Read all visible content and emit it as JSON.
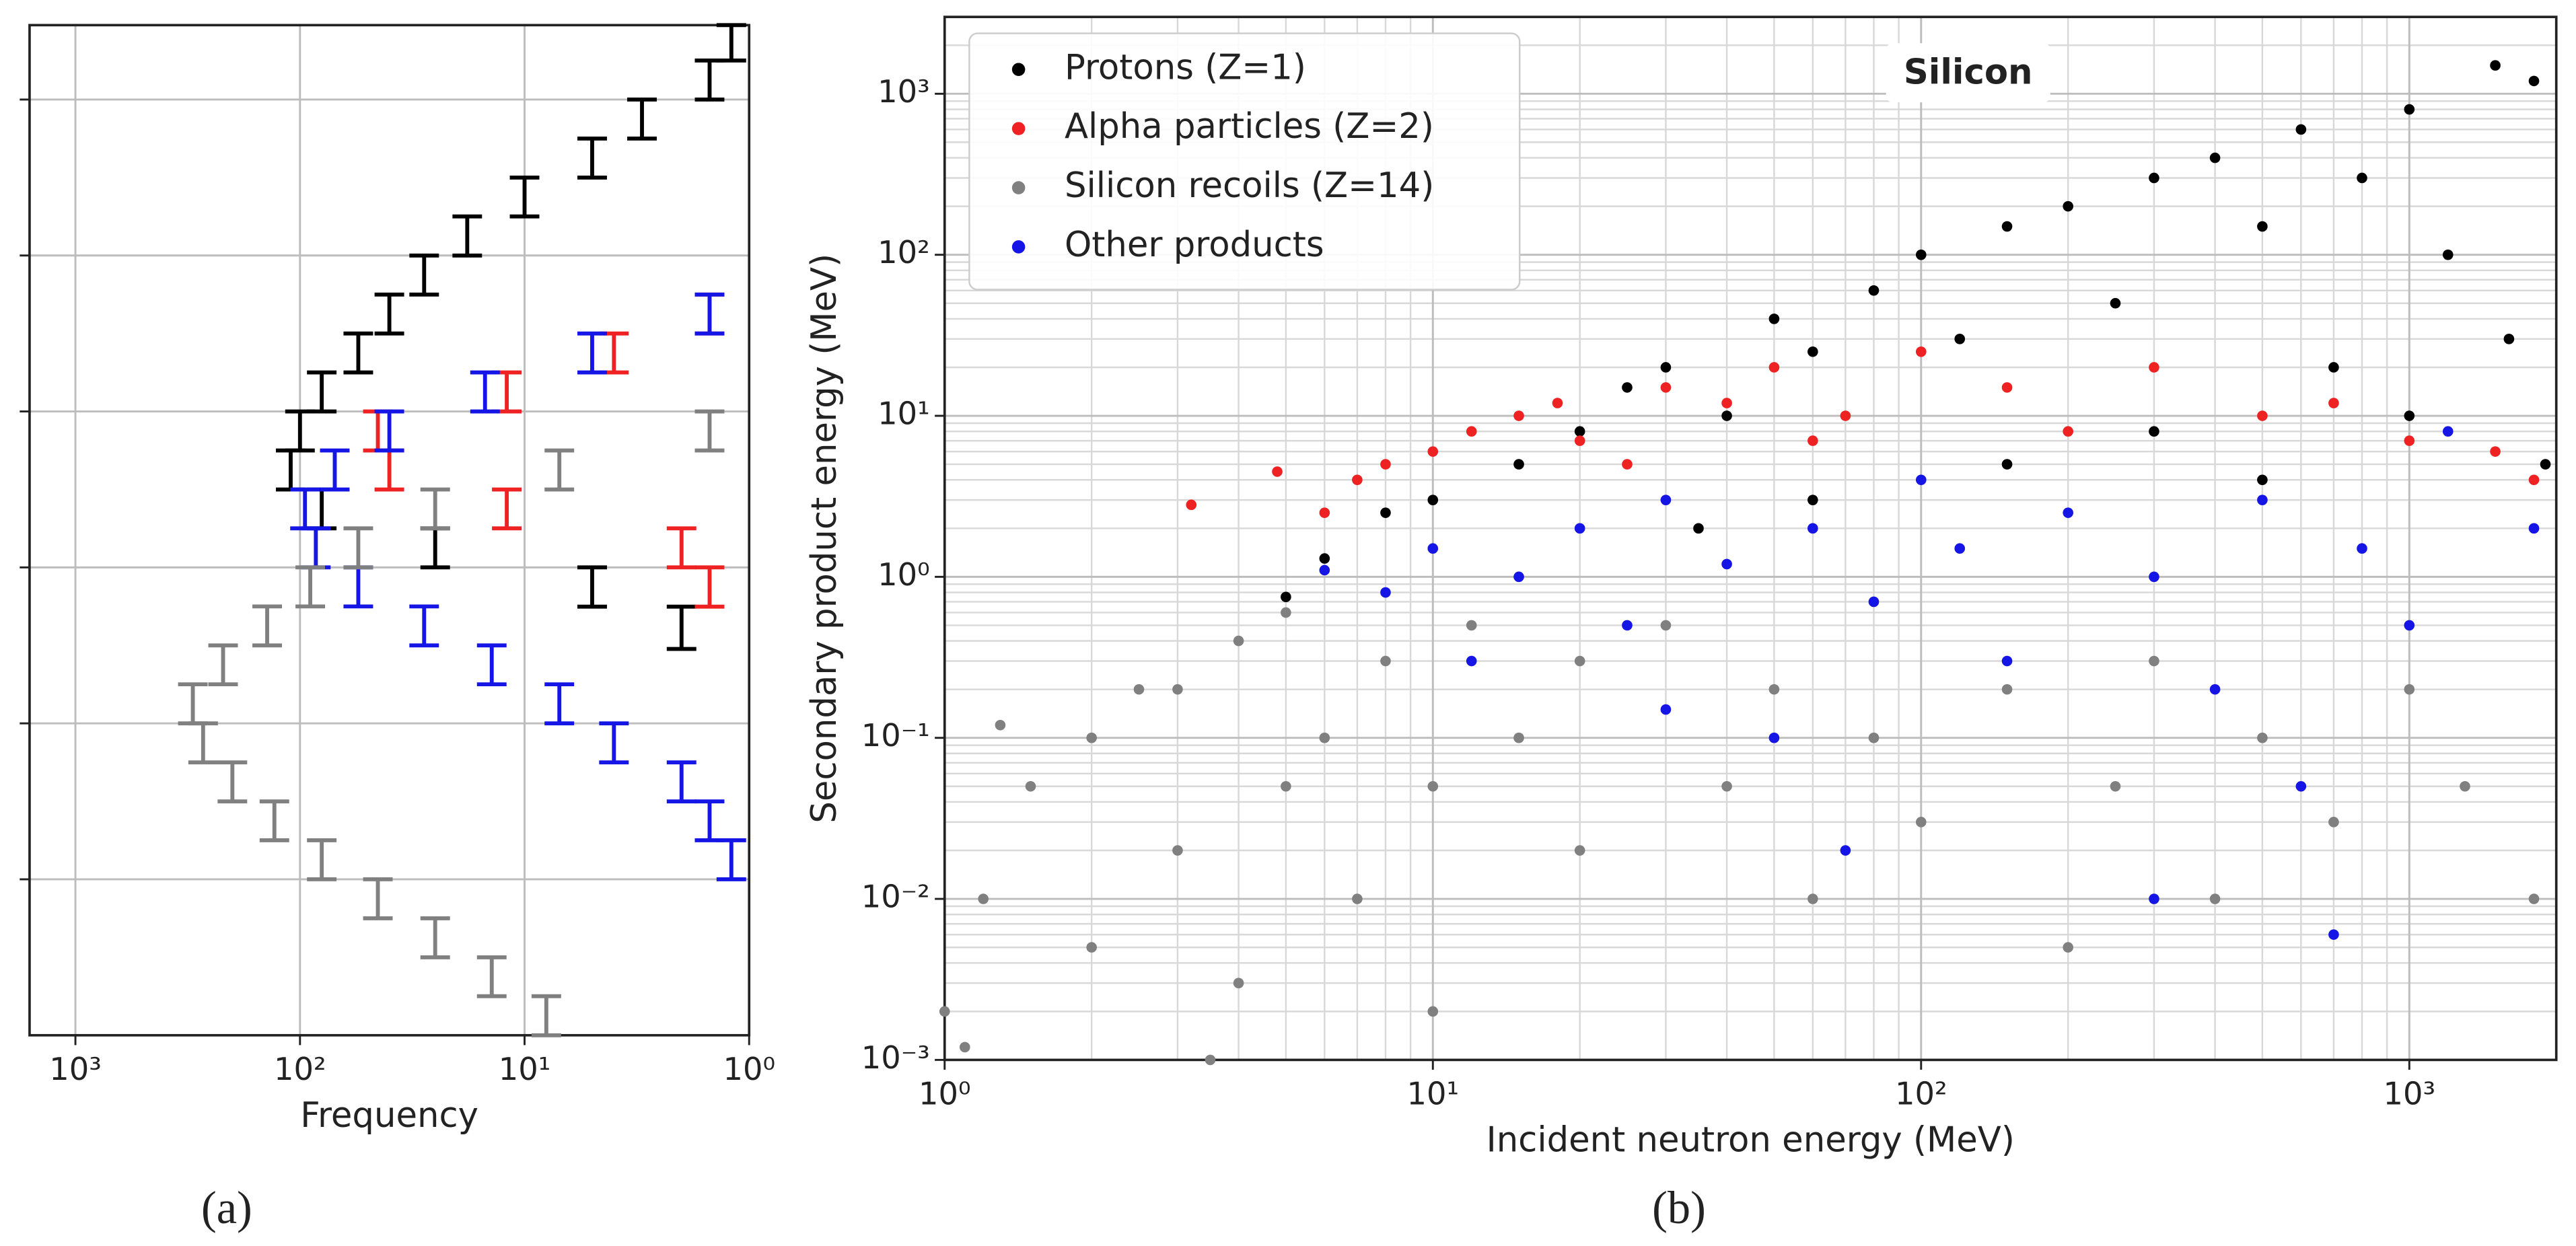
{
  "chart_data": [
    {
      "type": "histogram",
      "orientation": "horizontal",
      "panel_label": "(a)",
      "x_label": "Frequency",
      "xscale": "log",
      "yscale": "log",
      "grid": "major",
      "xlim": [
        1600,
        1
      ],
      "xticks": [
        {
          "value": 1000,
          "label": "10³"
        },
        {
          "value": 100,
          "label": "10²"
        },
        {
          "value": 10,
          "label": "10¹"
        },
        {
          "value": 1,
          "label": "10⁰"
        }
      ],
      "ylim": [
        0.001,
        3000
      ],
      "yticks": [
        0.01,
        0.1,
        1,
        10,
        100,
        1000
      ],
      "series": [
        {
          "color": "#000000",
          "bins": [
            0.3,
            0.56,
            1,
            1.78,
            3.16,
            5.62,
            10,
            17.8,
            31.6,
            56.2,
            100,
            178,
            316,
            562,
            1000,
            1780,
            3000
          ],
          "values": [
            2,
            5,
            25,
            80,
            110,
            100,
            80,
            55,
            40,
            28,
            18,
            10,
            5,
            3,
            1.5,
            1.2
          ]
        },
        {
          "color": "#ee2222",
          "bins": [
            0.56,
            1,
            1.78,
            3.16,
            5.62,
            10,
            17.8,
            31.6,
            56.2
          ],
          "values": [
            1.5,
            2,
            12,
            40,
            45,
            12,
            4,
            1.5
          ]
        },
        {
          "color": "#1515e6",
          "bins": [
            0.01,
            0.0178,
            0.0316,
            0.0562,
            0.1,
            0.178,
            0.316,
            0.562,
            1,
            1.78,
            3.16,
            5.62,
            10,
            17.8,
            31.6,
            56.2
          ],
          "values": [
            1.2,
            1.5,
            2,
            4,
            7,
            14,
            28,
            55,
            85,
            95,
            70,
            40,
            15,
            5,
            1.5
          ]
        },
        {
          "color": "#808080",
          "bins": [
            0.001,
            0.00178,
            0.00316,
            0.00562,
            0.01,
            0.0178,
            0.0316,
            0.0562,
            0.1,
            0.178,
            0.316,
            0.562,
            1,
            1.78,
            3.16,
            5.62,
            10
          ],
          "values": [
            8,
            14,
            25,
            45,
            80,
            130,
            200,
            270,
            300,
            220,
            140,
            90,
            55,
            25,
            7,
            1.5
          ]
        }
      ]
    },
    {
      "type": "scatter",
      "panel_label": "(b)",
      "title": "Silicon",
      "x_label": "Incident neutron energy (MeV)",
      "y_label": "Secondary product energy (MeV)",
      "xscale": "log",
      "yscale": "log",
      "grid": "both",
      "legend": "upper left",
      "xlim": [
        1,
        2000
      ],
      "xticks": [
        {
          "value": 1,
          "label": "10⁰"
        },
        {
          "value": 10,
          "label": "10¹"
        },
        {
          "value": 100,
          "label": "10²"
        },
        {
          "value": 1000,
          "label": "10³"
        }
      ],
      "ylim": [
        0.001,
        3000
      ],
      "yticks": [
        {
          "value": 0.001,
          "label": "10⁻³"
        },
        {
          "value": 0.01,
          "label": "10⁻²"
        },
        {
          "value": 0.1,
          "label": "10⁻¹"
        },
        {
          "value": 1,
          "label": "10⁰"
        },
        {
          "value": 10,
          "label": "10¹"
        },
        {
          "value": 100,
          "label": "10²"
        },
        {
          "value": 1000,
          "label": "10³"
        }
      ],
      "series": [
        {
          "name": "Protons (Z=1)",
          "color": "#000000",
          "x": [
            5,
            6,
            8,
            10,
            15,
            20,
            25,
            30,
            40,
            50,
            60,
            80,
            100,
            120,
            150,
            200,
            250,
            300,
            400,
            500,
            600,
            800,
            1000,
            1200,
            1500,
            1800,
            1600,
            700,
            300,
            150,
            60,
            35,
            1000,
            1900,
            500
          ],
          "values": [
            0.75,
            1.3,
            2.5,
            3,
            5,
            8,
            15,
            20,
            10,
            40,
            25,
            60,
            100,
            30,
            150,
            200,
            50,
            300,
            400,
            150,
            600,
            300,
            800,
            100,
            1500,
            1200,
            30,
            20,
            8,
            5,
            3,
            2,
            10,
            5,
            4
          ]
        },
        {
          "name": "Alpha particles (Z=2)",
          "color": "#ee2222",
          "x": [
            3.2,
            4.8,
            6,
            7,
            8,
            10,
            12,
            15,
            18,
            20,
            30,
            40,
            50,
            70,
            100,
            150,
            200,
            300,
            500,
            700,
            1000,
            1500,
            1800,
            25,
            60
          ],
          "values": [
            2.8,
            4.5,
            2.5,
            4,
            5,
            6,
            8,
            10,
            12,
            7,
            15,
            12,
            20,
            10,
            25,
            15,
            8,
            20,
            10,
            12,
            7,
            6,
            4,
            5,
            7
          ]
        },
        {
          "name": "Silicon recoils (Z=14)",
          "color": "#808080",
          "x": [
            1,
            1.2,
            1.5,
            2,
            2,
            3,
            3,
            4,
            4,
            5,
            5,
            6,
            7,
            8,
            10,
            10,
            12,
            15,
            20,
            20,
            30,
            40,
            50,
            60,
            80,
            100,
            150,
            200,
            250,
            300,
            400,
            500,
            700,
            1000,
            1300,
            1800,
            1.3,
            2.5,
            1.1,
            3.5
          ],
          "values": [
            0.002,
            0.01,
            0.05,
            0.1,
            0.005,
            0.2,
            0.02,
            0.4,
            0.003,
            0.6,
            0.05,
            0.1,
            0.01,
            0.3,
            0.05,
            0.002,
            0.5,
            0.1,
            0.02,
            0.3,
            0.5,
            0.05,
            0.2,
            0.01,
            0.1,
            0.03,
            0.2,
            0.005,
            0.05,
            0.3,
            0.01,
            0.1,
            0.03,
            0.2,
            0.05,
            0.01,
            0.12,
            0.2,
            0.0012,
            0.001
          ]
        },
        {
          "name": "Other products",
          "color": "#1515e6",
          "x": [
            6,
            8,
            10,
            12,
            15,
            20,
            25,
            30,
            40,
            50,
            60,
            80,
            100,
            120,
            150,
            200,
            300,
            400,
            500,
            600,
            800,
            1000,
            1200,
            1800,
            70,
            30,
            300,
            700
          ],
          "values": [
            1.1,
            0.8,
            1.5,
            0.3,
            1,
            2,
            0.5,
            3,
            1.2,
            0.1,
            2,
            0.7,
            4,
            1.5,
            0.3,
            2.5,
            1,
            0.2,
            3,
            0.05,
            1.5,
            0.5,
            8,
            2,
            0.02,
            0.15,
            0.01,
            0.006
          ]
        }
      ]
    }
  ]
}
